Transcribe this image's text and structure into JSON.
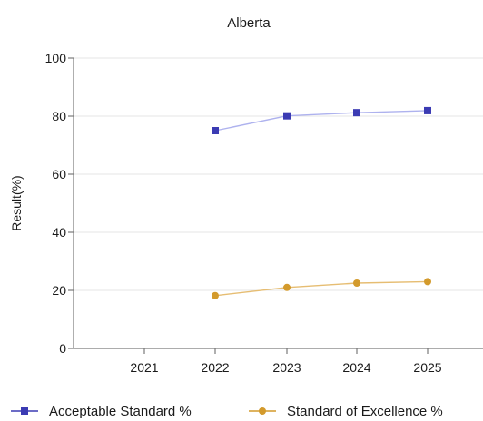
{
  "chart_data": {
    "type": "line",
    "title": "Alberta",
    "xlabel": "",
    "ylabel": "Result(%)",
    "categories": [
      "2021",
      "2022",
      "2023",
      "2024",
      "2025"
    ],
    "ylim": [
      0,
      100
    ],
    "yticks": [
      0,
      20,
      40,
      60,
      80,
      100
    ],
    "grid": true,
    "legend_position": "bottom",
    "series": [
      {
        "name": "Acceptable Standard %",
        "values": [
          null,
          75.0,
          80.1,
          81.2,
          81.9
        ],
        "color": "#3b3bb3",
        "line_color": "#aeb2ee",
        "marker": "square"
      },
      {
        "name": "Standard of Excellence %",
        "values": [
          null,
          18.2,
          21.0,
          22.5,
          23.0
        ],
        "color": "#d39a2c",
        "line_color": "#e6bd72",
        "marker": "circle"
      }
    ]
  }
}
